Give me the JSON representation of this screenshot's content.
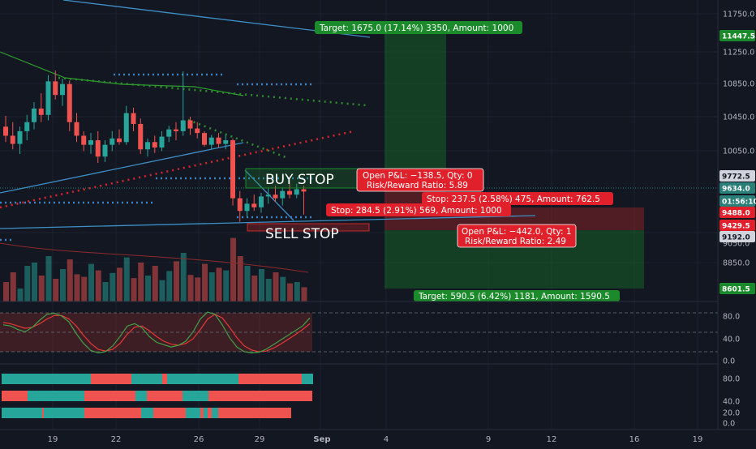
{
  "colors": {
    "background": "#131722",
    "up": "#26a69a",
    "down": "#ef5350",
    "target_green": "#1b8a2b",
    "stop_red": "#e0202a",
    "blue_line": "#3d8fc6",
    "dotted_blue": "#3b82c4",
    "dotted_green": "#2e8b2e",
    "dotted_red": "#d8242c"
  },
  "price_scale": {
    "ticks": [
      "11750.0",
      "11250.0",
      "10850.0",
      "10450.0",
      "10050.0",
      "9050.0",
      "8850.0"
    ],
    "labels": [
      {
        "text": "11447.5",
        "color": "#1b8a2b",
        "text_color": "#ffffff"
      },
      {
        "text": "9772.5",
        "color": "#d1d4dc",
        "text_color": "#131722"
      },
      {
        "text": "9634.0",
        "color": "#2a7f79",
        "text_color": "#ffffff"
      },
      {
        "text": "01:56:10",
        "color": "#2a7f79",
        "text_color": "#ffffff"
      },
      {
        "text": "9488.0",
        "color": "#e0202a",
        "text_color": "#ffffff"
      },
      {
        "text": "9429.5",
        "color": "#e0202a",
        "text_color": "#ffffff"
      },
      {
        "text": "9192.0",
        "color": "#d1d4dc",
        "text_color": "#131722"
      },
      {
        "text": "8601.5",
        "color": "#1b8a2b",
        "text_color": "#ffffff"
      }
    ]
  },
  "oscillator_scale": {
    "ticks": [
      "80.0",
      "40.0",
      "0.0"
    ]
  },
  "bar_scale": {
    "ticks": [
      "80.0",
      "40.0",
      "20.0",
      "0.0"
    ]
  },
  "date_axis": {
    "labels": [
      "19",
      "22",
      "26",
      "29",
      "Sep",
      "4",
      "9",
      "12",
      "16",
      "19"
    ]
  },
  "annotations": {
    "buy_stop": "BUY STOP",
    "sell_stop": "SELL STOP",
    "short_target": "Target: 1675.0 (17.14%) 3350, Amount: 1000",
    "long_pnl_line1": "Open P&L: −138.5, Qty: 0",
    "long_pnl_line2": "Risk/Reward Ratio: 5.89",
    "stop_upper": "Stop: 237.5 (2.58%) 475, Amount: 762.5",
    "stop_lower": "Stop: 284.5 (2.91%) 569, Amount: 1000",
    "short_pnl_line1": "Open P&L: −442.0, Qty: 1",
    "short_pnl_line2": "Risk/Reward Ratio: 2.49",
    "long_target": "Target: 590.5 (6.42%) 1181, Amount: 1590.5"
  },
  "chart_data": {
    "type": "candlestick",
    "candles": [
      {
        "o": 10350,
        "h": 10470,
        "l": 10180,
        "c": 10250
      },
      {
        "o": 10250,
        "h": 10400,
        "l": 10100,
        "c": 10160
      },
      {
        "o": 10160,
        "h": 10350,
        "l": 10050,
        "c": 10300
      },
      {
        "o": 10300,
        "h": 10480,
        "l": 10200,
        "c": 10400
      },
      {
        "o": 10400,
        "h": 10620,
        "l": 10320,
        "c": 10550
      },
      {
        "o": 10550,
        "h": 10720,
        "l": 10400,
        "c": 10480
      },
      {
        "o": 10480,
        "h": 10920,
        "l": 10420,
        "c": 10850
      },
      {
        "o": 10850,
        "h": 10970,
        "l": 10650,
        "c": 10700
      },
      {
        "o": 10700,
        "h": 10880,
        "l": 10580,
        "c": 10820
      },
      {
        "o": 10820,
        "h": 10860,
        "l": 10300,
        "c": 10400
      },
      {
        "o": 10400,
        "h": 10500,
        "l": 10180,
        "c": 10250
      },
      {
        "o": 10250,
        "h": 10300,
        "l": 10080,
        "c": 10150
      },
      {
        "o": 10150,
        "h": 10280,
        "l": 10050,
        "c": 10200
      },
      {
        "o": 10200,
        "h": 10300,
        "l": 9950,
        "c": 10020
      },
      {
        "o": 10020,
        "h": 10200,
        "l": 9960,
        "c": 10150
      },
      {
        "o": 10150,
        "h": 10300,
        "l": 10080,
        "c": 10220
      },
      {
        "o": 10220,
        "h": 10320,
        "l": 10150,
        "c": 10180
      },
      {
        "o": 10180,
        "h": 10580,
        "l": 10150,
        "c": 10500
      },
      {
        "o": 10500,
        "h": 10560,
        "l": 10300,
        "c": 10380
      },
      {
        "o": 10380,
        "h": 10440,
        "l": 10050,
        "c": 10100
      },
      {
        "o": 10100,
        "h": 10220,
        "l": 10020,
        "c": 10180
      },
      {
        "o": 10180,
        "h": 10250,
        "l": 10060,
        "c": 10120
      },
      {
        "o": 10120,
        "h": 10300,
        "l": 10080,
        "c": 10240
      },
      {
        "o": 10240,
        "h": 10360,
        "l": 10180,
        "c": 10320
      },
      {
        "o": 10320,
        "h": 10400,
        "l": 10200,
        "c": 10300
      },
      {
        "o": 10300,
        "h": 10960,
        "l": 10250,
        "c": 10420
      },
      {
        "o": 10420,
        "h": 10460,
        "l": 10260,
        "c": 10330
      },
      {
        "o": 10330,
        "h": 10400,
        "l": 10220,
        "c": 10280
      },
      {
        "o": 10280,
        "h": 10300,
        "l": 10130,
        "c": 10150
      },
      {
        "o": 10150,
        "h": 10260,
        "l": 10100,
        "c": 10230
      },
      {
        "o": 10230,
        "h": 10280,
        "l": 10120,
        "c": 10160
      },
      {
        "o": 10160,
        "h": 10260,
        "l": 10100,
        "c": 10200
      },
      {
        "o": 10200,
        "h": 10220,
        "l": 9480,
        "c": 9560
      },
      {
        "o": 9560,
        "h": 9640,
        "l": 9300,
        "c": 9420
      },
      {
        "o": 9420,
        "h": 9560,
        "l": 9350,
        "c": 9500
      },
      {
        "o": 9500,
        "h": 9600,
        "l": 9420,
        "c": 9460
      },
      {
        "o": 9460,
        "h": 9620,
        "l": 9400,
        "c": 9580
      },
      {
        "o": 9580,
        "h": 9680,
        "l": 9500,
        "c": 9600
      },
      {
        "o": 9600,
        "h": 9700,
        "l": 9520,
        "c": 9560
      },
      {
        "o": 9560,
        "h": 9680,
        "l": 9480,
        "c": 9640
      },
      {
        "o": 9640,
        "h": 9720,
        "l": 9560,
        "c": 9600
      },
      {
        "o": 9600,
        "h": 9720,
        "l": 9560,
        "c": 9660
      },
      {
        "o": 9660,
        "h": 9700,
        "l": 9380,
        "c": 9634
      }
    ],
    "volume": [
      30,
      45,
      20,
      55,
      60,
      40,
      70,
      35,
      50,
      65,
      42,
      38,
      58,
      48,
      30,
      44,
      52,
      68,
      36,
      60,
      40,
      55,
      33,
      47,
      62,
      75,
      41,
      37,
      58,
      45,
      52,
      48,
      98,
      70,
      55,
      40,
      50,
      35,
      45,
      38,
      28,
      30,
      22
    ],
    "stoch_k": [
      60,
      58,
      52,
      48,
      56,
      68,
      78,
      80,
      75,
      65,
      45,
      28,
      16,
      12,
      14,
      24,
      40,
      58,
      62,
      55,
      40,
      30,
      26,
      22,
      25,
      32,
      48,
      70,
      82,
      78,
      60,
      38,
      22,
      14,
      12,
      13,
      18,
      26,
      34,
      42,
      50,
      58,
      72
    ],
    "stoch_d": [
      64,
      62,
      58,
      54,
      56,
      62,
      70,
      76,
      76,
      70,
      58,
      42,
      28,
      18,
      15,
      18,
      28,
      44,
      56,
      58,
      50,
      40,
      32,
      27,
      25,
      28,
      36,
      52,
      70,
      78,
      72,
      56,
      38,
      24,
      17,
      14,
      15,
      20,
      27,
      35,
      43,
      52,
      62
    ],
    "heat_rows": [
      [
        [
          "up",
          110
        ],
        [
          "down",
          50
        ],
        [
          "up",
          38
        ],
        [
          "down",
          6
        ],
        [
          "up",
          88
        ],
        [
          "down",
          78
        ],
        [
          "up",
          14
        ]
      ],
      [
        [
          "down",
          32
        ],
        [
          "up",
          70
        ],
        [
          "down",
          63
        ],
        [
          "up",
          14
        ],
        [
          "down",
          44
        ],
        [
          "up",
          32
        ],
        [
          "down",
          128
        ]
      ],
      [
        [
          "up",
          50
        ],
        [
          "down",
          2
        ],
        [
          "up",
          50
        ],
        [
          "down",
          70
        ],
        [
          "up",
          15
        ],
        [
          "down",
          40
        ],
        [
          "up",
          18
        ],
        [
          "down",
          4
        ],
        [
          "up",
          5
        ],
        [
          "down",
          5
        ],
        [
          "up",
          8
        ],
        [
          "down",
          90
        ]
      ]
    ]
  }
}
